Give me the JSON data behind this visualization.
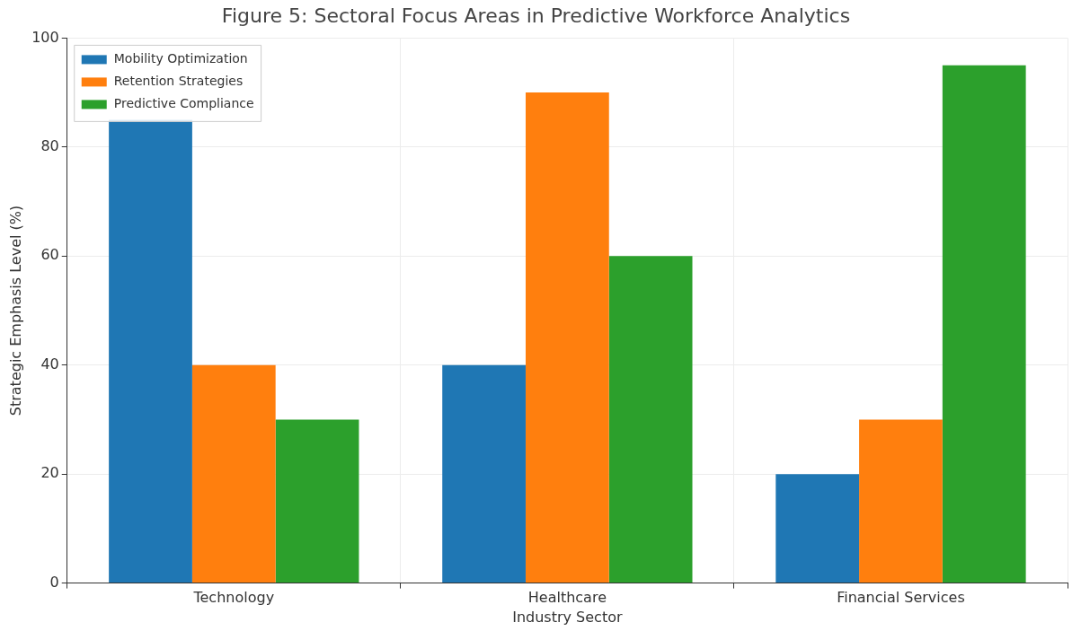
{
  "chart_data": {
    "type": "bar",
    "title": "Figure 5: Sectoral Focus Areas in Predictive Workforce Analytics",
    "xlabel": "Industry Sector",
    "ylabel": "Strategic Emphasis Level (%)",
    "categories": [
      "Technology",
      "Healthcare",
      "Financial Services"
    ],
    "series": [
      {
        "name": "Mobility Optimization",
        "color": "#1f77b4",
        "values": [
          85,
          40,
          20
        ]
      },
      {
        "name": "Retention Strategies",
        "color": "#ff7f0e",
        "values": [
          40,
          90,
          30
        ]
      },
      {
        "name": "Predictive Compliance",
        "color": "#2ca02c",
        "values": [
          30,
          60,
          95
        ]
      }
    ],
    "ylim": [
      0,
      100
    ],
    "yticks": [
      0,
      20,
      40,
      60,
      80,
      100
    ],
    "grid": true,
    "legend": "top left"
  }
}
